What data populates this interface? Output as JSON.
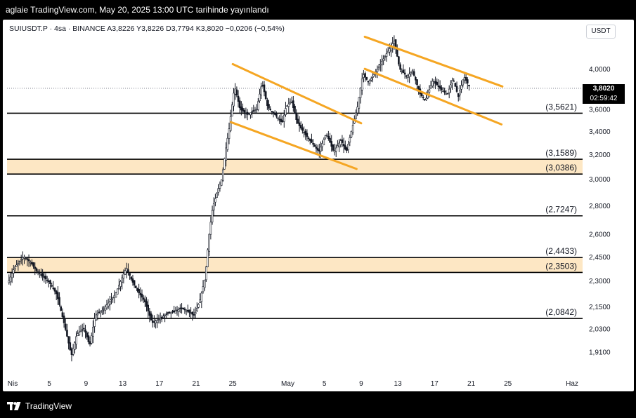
{
  "banner": {
    "text": "aglaie TradingView.com, May 20, 2025 13:00 UTC tarihinde yayınlandı"
  },
  "header": {
    "symbol_line": "SUIUSDT.P · 4sa · BINANCE  A3,8226  Y3,8226  D3,7794  K3,8020  −0,0206 (−0,54%)",
    "currency": "USDT"
  },
  "price_tag": {
    "last": "3,8020",
    "countdown": "02:59:42"
  },
  "footer": {
    "brand": "TradingView"
  },
  "colors": {
    "channel": "#f5a623",
    "zone": "#fde7c4",
    "candles": "#131722",
    "level": "#000000"
  },
  "icons": [
    "tradingview-logo-icon"
  ],
  "chart_data": {
    "type": "candlestick",
    "y_scale": "log",
    "ylim": [
      1.82,
      4.45
    ],
    "yticks": [
      {
        "value": 4.0,
        "label": "4,0000"
      },
      {
        "value": 3.6,
        "label": "3,6000"
      },
      {
        "value": 3.4,
        "label": "3,4000"
      },
      {
        "value": 3.2,
        "label": "3,2000"
      },
      {
        "value": 3.0,
        "label": "3,0000"
      },
      {
        "value": 2.8,
        "label": "2,8000"
      },
      {
        "value": 2.6,
        "label": "2,6000"
      },
      {
        "value": 2.45,
        "label": "2,4500"
      },
      {
        "value": 2.3,
        "label": "2,3000"
      },
      {
        "value": 2.15,
        "label": "2,1500"
      },
      {
        "value": 2.03,
        "label": "2,0300"
      },
      {
        "value": 1.91,
        "label": "1,9100"
      }
    ],
    "xticks": [
      {
        "day": 1,
        "label": "Nis"
      },
      {
        "day": 5,
        "label": "5"
      },
      {
        "day": 9,
        "label": "9"
      },
      {
        "day": 13,
        "label": "13"
      },
      {
        "day": 17,
        "label": "17"
      },
      {
        "day": 21,
        "label": "21"
      },
      {
        "day": 25,
        "label": "25"
      },
      {
        "day": 31,
        "label": "May"
      },
      {
        "day": 35,
        "label": "5"
      },
      {
        "day": 39,
        "label": "9"
      },
      {
        "day": 43,
        "label": "13"
      },
      {
        "day": 47,
        "label": "17"
      },
      {
        "day": 51,
        "label": "21"
      },
      {
        "day": 55,
        "label": "25"
      },
      {
        "day": 62,
        "label": "Haz"
      }
    ],
    "last_price": 3.802,
    "levels": [
      {
        "value": 3.5621,
        "label": "(3,5621)"
      },
      {
        "value": 3.1589,
        "label": "(3,1589)"
      },
      {
        "value": 3.0386,
        "label": "(3,0386)"
      },
      {
        "value": 2.7247,
        "label": "(2,7247)"
      },
      {
        "value": 2.4433,
        "label": "(2,4433)"
      },
      {
        "value": 2.3503,
        "label": "(2,3503)"
      },
      {
        "value": 2.0842,
        "label": "(2,0842)"
      }
    ],
    "zones": [
      [
        3.0386,
        3.1589
      ],
      [
        2.3503,
        2.4433
      ]
    ],
    "channel_lines": [
      {
        "from": {
          "day": 25,
          "value": 4.05
        },
        "to": {
          "day": 39,
          "value": 3.47
        }
      },
      {
        "from": {
          "day": 24.8,
          "value": 3.48
        },
        "to": {
          "day": 38.5,
          "value": 3.08
        }
      },
      {
        "from": {
          "day": 39.4,
          "value": 4.35
        },
        "to": {
          "day": 54.4,
          "value": 3.82
        }
      },
      {
        "from": {
          "day": 39.4,
          "value": 4.0
        },
        "to": {
          "day": 54.3,
          "value": 3.46
        }
      }
    ],
    "price_path": [
      [
        0.6,
        2.3
      ],
      [
        1.2,
        2.38
      ],
      [
        2.2,
        2.45
      ],
      [
        3.0,
        2.41
      ],
      [
        3.6,
        2.36
      ],
      [
        4.4,
        2.32
      ],
      [
        5.0,
        2.29
      ],
      [
        5.8,
        2.22
      ],
      [
        6.6,
        2.06
      ],
      [
        7.4,
        1.89
      ],
      [
        8.0,
        2.0
      ],
      [
        8.8,
        2.03
      ],
      [
        9.4,
        1.94
      ],
      [
        10.0,
        2.1
      ],
      [
        10.8,
        2.13
      ],
      [
        11.6,
        2.18
      ],
      [
        12.2,
        2.22
      ],
      [
        12.8,
        2.3
      ],
      [
        13.4,
        2.38
      ],
      [
        14.0,
        2.3
      ],
      [
        14.6,
        2.24
      ],
      [
        15.4,
        2.18
      ],
      [
        16.2,
        2.06
      ],
      [
        17.0,
        2.08
      ],
      [
        17.8,
        2.11
      ],
      [
        18.6,
        2.12
      ],
      [
        19.4,
        2.14
      ],
      [
        20.2,
        2.12
      ],
      [
        20.8,
        2.1
      ],
      [
        21.4,
        2.18
      ],
      [
        22.0,
        2.32
      ],
      [
        22.4,
        2.58
      ],
      [
        22.8,
        2.78
      ],
      [
        23.4,
        2.92
      ],
      [
        23.8,
        3.0
      ],
      [
        24.2,
        3.22
      ],
      [
        24.6,
        3.42
      ],
      [
        25.2,
        3.82
      ],
      [
        25.8,
        3.6
      ],
      [
        26.6,
        3.55
      ],
      [
        27.6,
        3.6
      ],
      [
        28.2,
        3.86
      ],
      [
        28.8,
        3.62
      ],
      [
        29.6,
        3.55
      ],
      [
        30.4,
        3.47
      ],
      [
        30.8,
        3.62
      ],
      [
        31.4,
        3.68
      ],
      [
        32.0,
        3.48
      ],
      [
        32.8,
        3.38
      ],
      [
        33.6,
        3.3
      ],
      [
        34.4,
        3.22
      ],
      [
        35.2,
        3.38
      ],
      [
        36.0,
        3.22
      ],
      [
        36.8,
        3.32
      ],
      [
        37.4,
        3.22
      ],
      [
        38.0,
        3.42
      ],
      [
        38.6,
        3.62
      ],
      [
        39.2,
        3.95
      ],
      [
        39.8,
        3.86
      ],
      [
        40.8,
        4.0
      ],
      [
        41.4,
        4.1
      ],
      [
        42.0,
        4.2
      ],
      [
        42.6,
        4.3
      ],
      [
        43.2,
        4.0
      ],
      [
        44.0,
        3.92
      ],
      [
        44.6,
        3.98
      ],
      [
        45.4,
        3.75
      ],
      [
        46.0,
        3.68
      ],
      [
        46.8,
        3.88
      ],
      [
        47.6,
        3.8
      ],
      [
        48.4,
        3.74
      ],
      [
        49.0,
        3.9
      ],
      [
        49.6,
        3.72
      ],
      [
        50.2,
        3.92
      ],
      [
        50.8,
        3.82
      ]
    ]
  }
}
